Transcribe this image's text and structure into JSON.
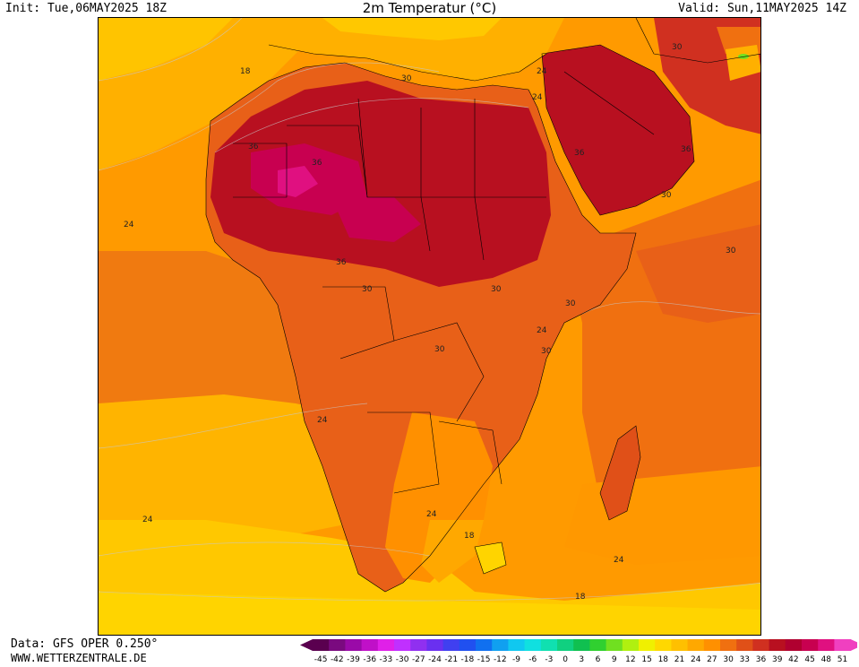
{
  "header": {
    "init": "Init: Tue,06MAY2025 18Z",
    "title": "2m Temperatur (°C)",
    "valid": "Valid: Sun,11MAY2025 14Z"
  },
  "footer": {
    "source": "Data: GFS OPER 0.250°",
    "website": "WWW.WETTERZENTRALE.DE"
  },
  "legend": {
    "ticks": [
      "-45",
      "-42",
      "-39",
      "-36",
      "-33",
      "-30",
      "-27",
      "-24",
      "-21",
      "-18",
      "-15",
      "-12",
      "-9",
      "-6",
      "-3",
      "0",
      "3",
      "6",
      "9",
      "12",
      "15",
      "18",
      "21",
      "24",
      "27",
      "30",
      "33",
      "36",
      "39",
      "42",
      "45",
      "48",
      "51"
    ],
    "colors": [
      "#5a004f",
      "#7a0a7f",
      "#9a0aa8",
      "#c010c8",
      "#e020e8",
      "#c030ff",
      "#9030f0",
      "#6a30f0",
      "#4040f0",
      "#2050f0",
      "#1070f0",
      "#10a0f0",
      "#10c8f0",
      "#10e0e0",
      "#10e0b0",
      "#10d080",
      "#10c050",
      "#30d030",
      "#70e020",
      "#b0f010",
      "#f0f000",
      "#ffd800",
      "#ffc000",
      "#ffa800",
      "#ff9000",
      "#f07010",
      "#e05018",
      "#d03020",
      "#b81020",
      "#b00030",
      "#c80050",
      "#e01080",
      "#f040c0"
    ]
  },
  "map": {
    "contour_labels": [
      {
        "text": "18"
      },
      {
        "text": "30"
      },
      {
        "text": "36"
      },
      {
        "text": "24"
      },
      {
        "text": "36"
      },
      {
        "text": "36"
      },
      {
        "text": "30"
      },
      {
        "text": "30"
      },
      {
        "text": "24"
      },
      {
        "text": "24"
      },
      {
        "text": "30"
      },
      {
        "text": "36"
      },
      {
        "text": "30"
      },
      {
        "text": "30"
      },
      {
        "text": "30"
      },
      {
        "text": "24"
      },
      {
        "text": "24"
      },
      {
        "text": "24"
      },
      {
        "text": "24"
      },
      {
        "text": "18"
      },
      {
        "text": "24"
      },
      {
        "text": "18"
      },
      {
        "text": "36"
      },
      {
        "text": "30"
      },
      {
        "text": "30"
      }
    ]
  }
}
